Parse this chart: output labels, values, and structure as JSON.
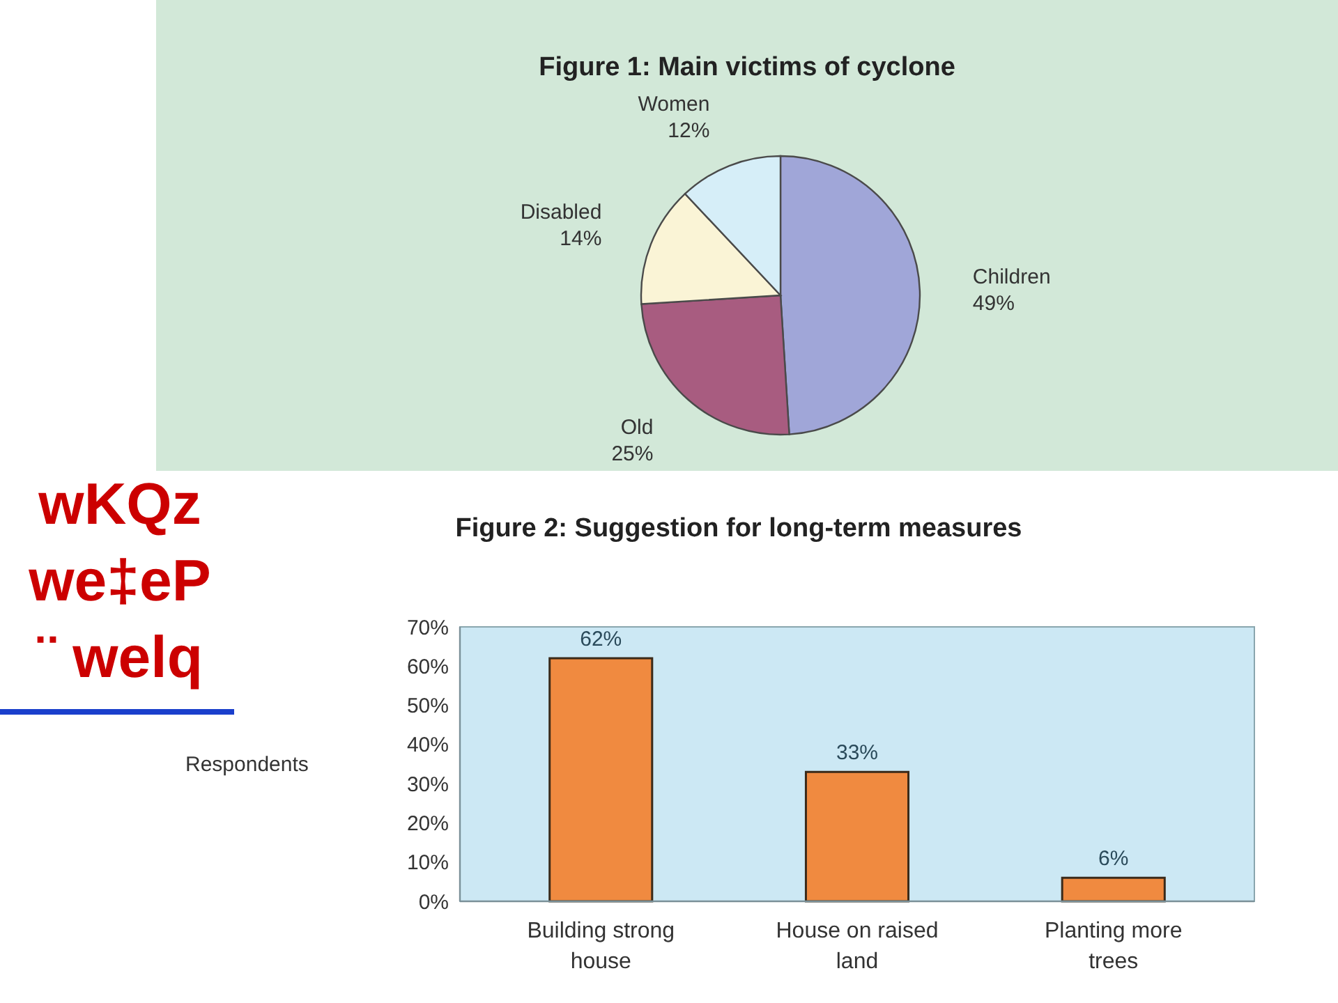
{
  "chart_data": [
    {
      "type": "pie",
      "title": "Figure 1: Main victims of cyclone",
      "categories": [
        "Children",
        "Old",
        "Disabled",
        "Women"
      ],
      "values": [
        49,
        25,
        14,
        12
      ],
      "value_labels": [
        "49%",
        "25%",
        "14%",
        "12%"
      ],
      "colors": [
        "#a0a6d8",
        "#a85c80",
        "#faf4d6",
        "#d6eef8"
      ]
    },
    {
      "type": "other",
      "annotations": [
        "wKQz",
        "we‡eP",
        "¨ welq"
      ]
    },
    {
      "type": "bar",
      "title": "Figure 2: Suggestion for long-term measures",
      "ylabel": "Respondents",
      "categories": [
        "Building strong house",
        "House on raised land",
        "Planting more trees"
      ],
      "values": [
        62,
        33,
        6
      ],
      "value_labels": [
        "62%",
        "33%",
        "6%"
      ],
      "color": "#f08a40",
      "ylim": [
        0,
        70
      ],
      "yticks": [
        {
          "value": 0,
          "label": "0%"
        },
        {
          "value": 10,
          "label": "10%"
        },
        {
          "value": 20,
          "label": "20%"
        },
        {
          "value": 30,
          "label": "30%"
        },
        {
          "value": 40,
          "label": "40%"
        },
        {
          "value": 50,
          "label": "50%"
        },
        {
          "value": 60,
          "label": "60%"
        },
        {
          "value": 70,
          "label": "70%"
        }
      ]
    }
  ]
}
